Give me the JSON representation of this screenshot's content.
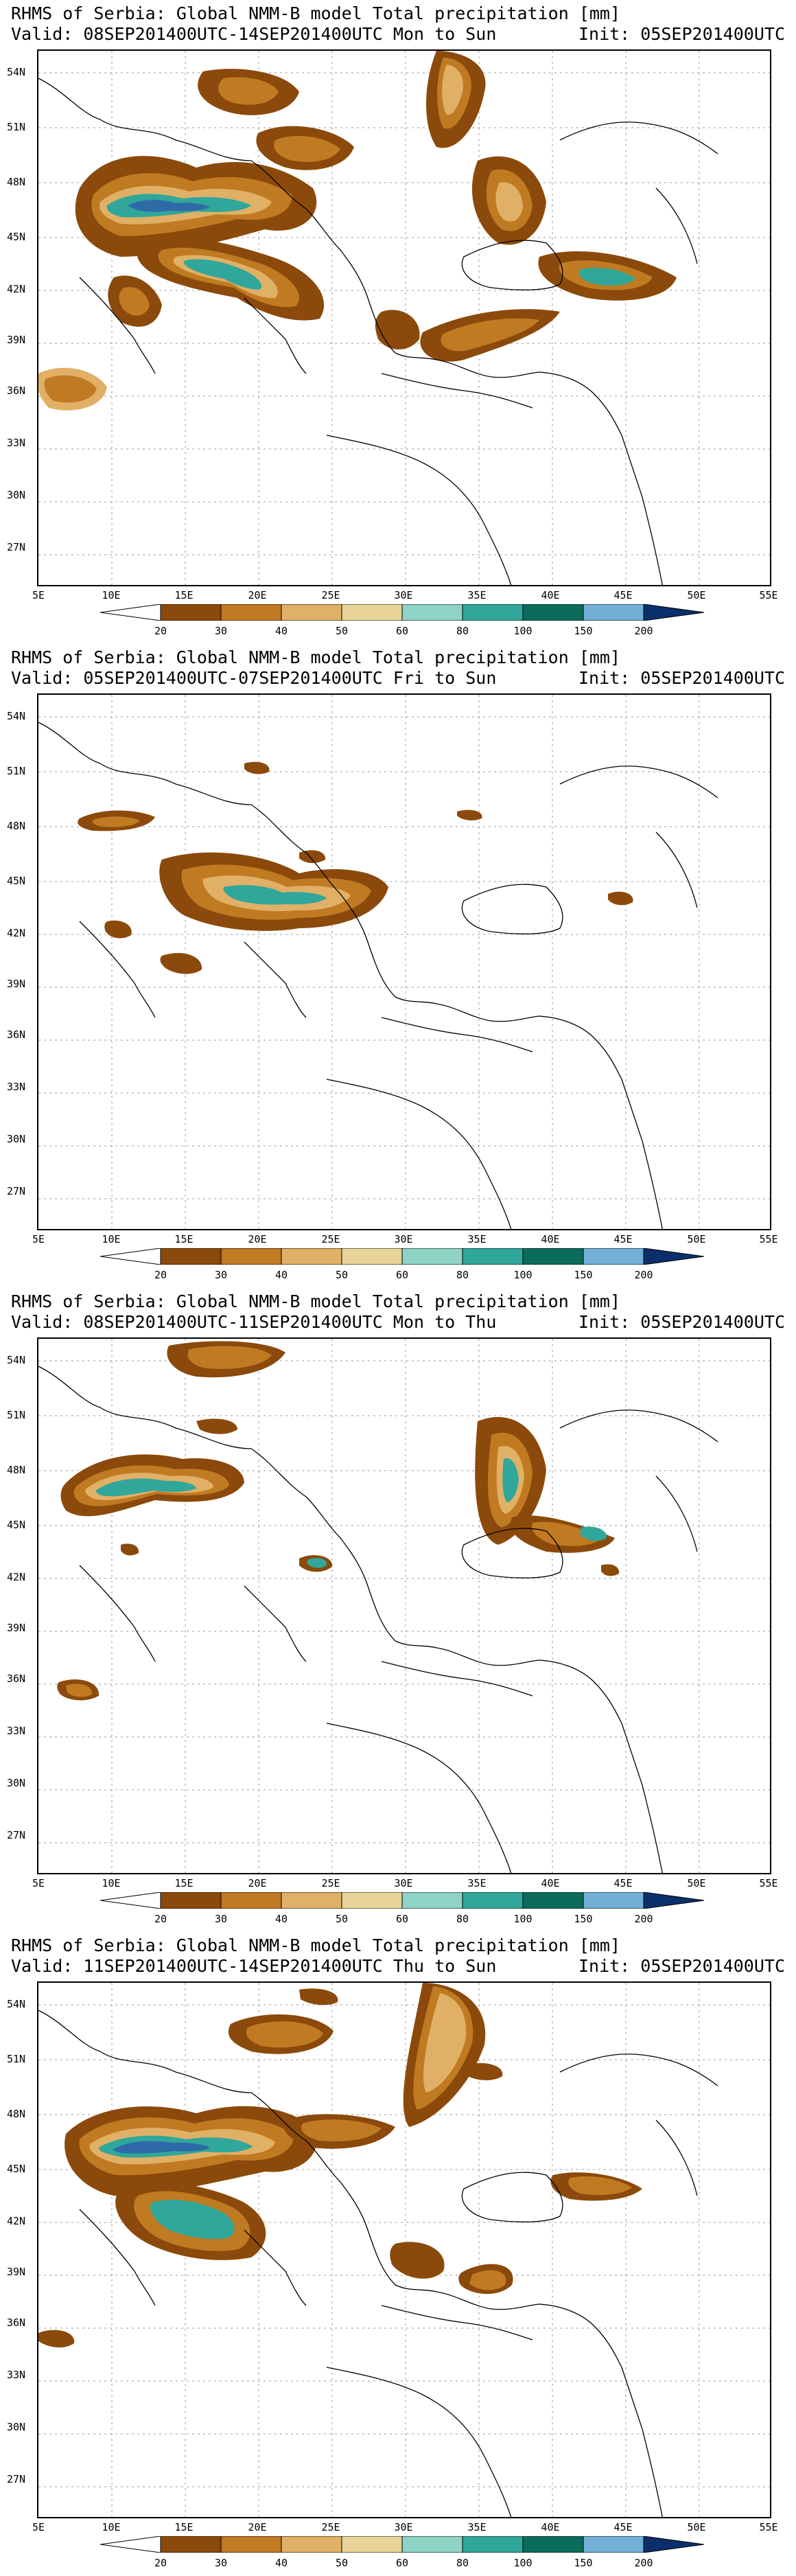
{
  "colors": {
    "c20": "#8b4a0b",
    "c30": "#c07a22",
    "c40": "#e0b066",
    "c50": "#e8d498",
    "c60": "#8ed3c4",
    "c80": "#30a79a",
    "c100": "#0b6b5c",
    "c150": "#73b0d8",
    "c200": "#2f6aa8",
    "cmax": "#0a2f6b",
    "coast": "#000000",
    "grid": "#9a9a9a"
  },
  "lat_labels": [
    "54N",
    "51N",
    "48N",
    "45N",
    "42N",
    "39N",
    "36N",
    "33N",
    "30N",
    "27N"
  ],
  "lon_labels": [
    "5E",
    "10E",
    "15E",
    "20E",
    "25E",
    "30E",
    "35E",
    "40E",
    "45E",
    "50E",
    "55E"
  ],
  "colorbar_labels": [
    "20",
    "30",
    "40",
    "50",
    "60",
    "80",
    "100",
    "150",
    "200"
  ],
  "panels": [
    {
      "title": "RHMS of Serbia: Global NMM-B model Total precipitation [mm]",
      "valid": "Valid: 08SEP201400UTC-14SEP201400UTC Mon to Sun",
      "init": "Init: 05SEP201400UTC"
    },
    {
      "title": "RHMS of Serbia: Global NMM-B model Total precipitation [mm]",
      "valid": "Valid: 05SEP201400UTC-07SEP201400UTC Fri to Sun",
      "init": "Init: 05SEP201400UTC"
    },
    {
      "title": "RHMS of Serbia: Global NMM-B model Total precipitation [mm]",
      "valid": "Valid: 08SEP201400UTC-11SEP201400UTC Mon to Thu",
      "init": "Init: 05SEP201400UTC"
    },
    {
      "title": "RHMS of Serbia: Global NMM-B model Total precipitation [mm]",
      "valid": "Valid: 11SEP201400UTC-14SEP201400UTC Thu to Sun",
      "init": "Init: 05SEP201400UTC"
    }
  ]
}
